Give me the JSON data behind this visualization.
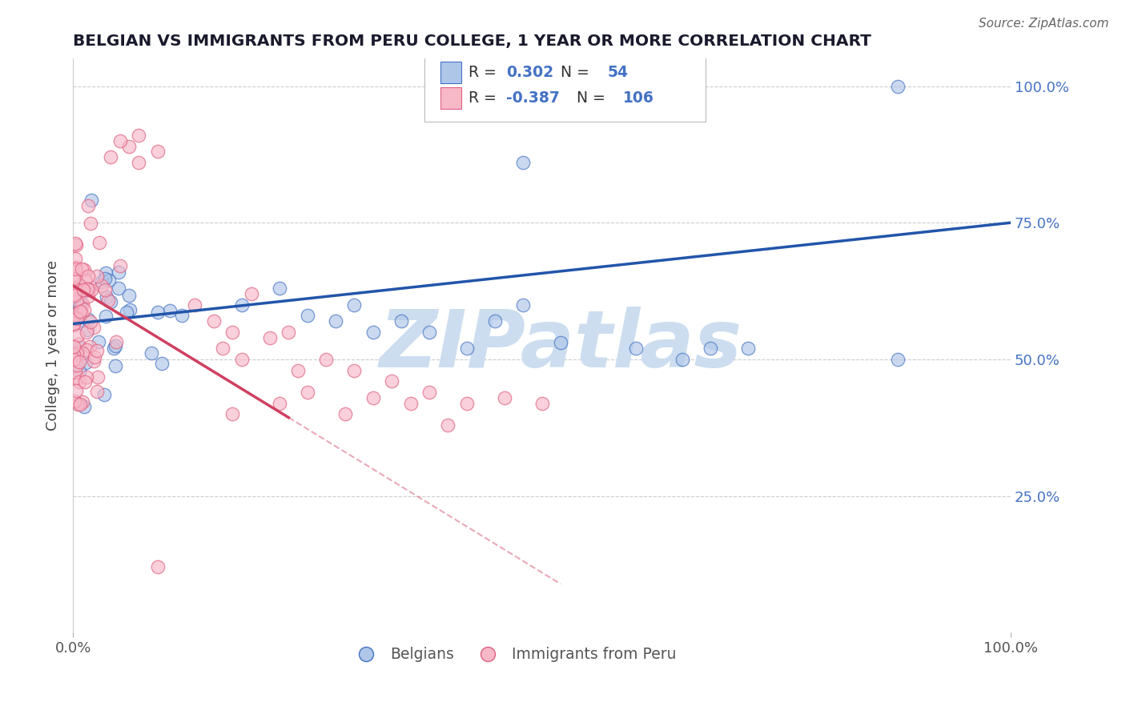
{
  "title": "BELGIAN VS IMMIGRANTS FROM PERU COLLEGE, 1 YEAR OR MORE CORRELATION CHART",
  "source": "Source: ZipAtlas.com",
  "ylabel": "College, 1 year or more",
  "xlim": [
    0.0,
    1.0
  ],
  "ylim": [
    0.0,
    1.05
  ],
  "R_blue": 0.302,
  "N_blue": 54,
  "R_pink": -0.387,
  "N_pink": 106,
  "blue_fill": "#aec6e8",
  "pink_fill": "#f7b8c8",
  "blue_edge": "#4472c4",
  "pink_edge": "#e06080",
  "blue_line": "#2255aa",
  "pink_line": "#d04060",
  "legend_text_color": "#4472c4",
  "right_axis_color": "#4472c4",
  "watermark_color": "#ccddef",
  "background": "#ffffff",
  "grid_color": "#cccccc",
  "title_color": "#1a1a2e",
  "source_color": "#666666",
  "ylabel_color": "#444444",
  "bottom_legend_color": "#555555"
}
